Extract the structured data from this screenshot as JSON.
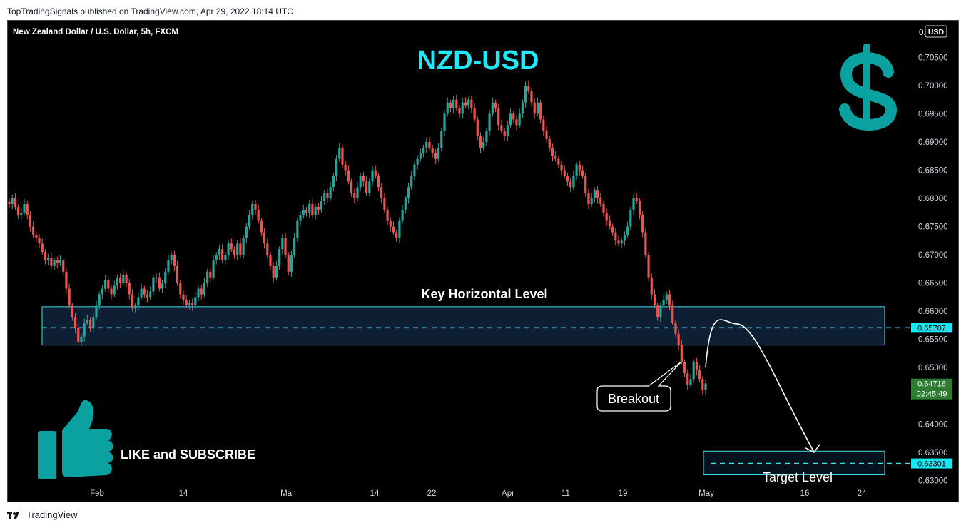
{
  "header": {
    "published_text": "TopTradingSignals published on TradingView.com, Apr 29, 2022 18:14 UTC"
  },
  "footer": {
    "brand": "TradingView",
    "logo_icon": "tradingview-logo-icon"
  },
  "colors": {
    "background": "#000000",
    "bull_candle": "#26a69a",
    "bear_candle": "#ef5350",
    "accent_cyan": "#00e5ff",
    "teal_icon": "#0aa1a0",
    "last_price_bg": "#2e7d32"
  },
  "chart_data": {
    "type": "candlestick",
    "symbol_title": "New Zealand Dollar / U.S. Dollar, 5h, FXCM",
    "overlay_title": "NZD-USD",
    "currency": "USD",
    "ylim": [
      0.626,
      0.7115
    ],
    "y_ticks": [
      0.705,
      0.7,
      0.695,
      0.69,
      0.685,
      0.68,
      0.675,
      0.67,
      0.665,
      0.66,
      0.655,
      0.65,
      0.64,
      0.635,
      0.63
    ],
    "y_tick_labels": [
      "0.70500",
      "0.70000",
      "0.69500",
      "0.69000",
      "0.68500",
      "0.68000",
      "0.67500",
      "0.67000",
      "0.66500",
      "0.66000",
      "0.65500",
      "0.65000",
      "0.64000",
      "0.63500",
      "0.63000"
    ],
    "y_top_label": "0.",
    "x_ticks": [
      "Feb",
      "14",
      "Mar",
      "14",
      "22",
      "Apr",
      "11",
      "19",
      "May",
      "16",
      "24"
    ],
    "path_closes": [
      0.679,
      0.68,
      0.6785,
      0.677,
      0.6775,
      0.679,
      0.677,
      0.675,
      0.6735,
      0.673,
      0.672,
      0.6705,
      0.669,
      0.6695,
      0.668,
      0.669,
      0.6685,
      0.669,
      0.667,
      0.664,
      0.661,
      0.659,
      0.657,
      0.6545,
      0.6555,
      0.658,
      0.6585,
      0.657,
      0.659,
      0.661,
      0.663,
      0.664,
      0.6655,
      0.664,
      0.663,
      0.6645,
      0.666,
      0.665,
      0.6665,
      0.665,
      0.663,
      0.6605,
      0.661,
      0.6625,
      0.664,
      0.663,
      0.6625,
      0.6635,
      0.666,
      0.666,
      0.664,
      0.665,
      0.667,
      0.669,
      0.67,
      0.668,
      0.665,
      0.663,
      0.662,
      0.661,
      0.6615,
      0.661,
      0.6625,
      0.664,
      0.663,
      0.665,
      0.667,
      0.666,
      0.669,
      0.67,
      0.671,
      0.669,
      0.67,
      0.672,
      0.671,
      0.67,
      0.672,
      0.67,
      0.673,
      0.675,
      0.677,
      0.679,
      0.678,
      0.676,
      0.674,
      0.672,
      0.67,
      0.668,
      0.666,
      0.668,
      0.671,
      0.673,
      0.67,
      0.667,
      0.67,
      0.673,
      0.676,
      0.677,
      0.678,
      0.6775,
      0.679,
      0.677,
      0.6785,
      0.678,
      0.6795,
      0.681,
      0.68,
      0.682,
      0.684,
      0.687,
      0.689,
      0.686,
      0.685,
      0.683,
      0.681,
      0.68,
      0.682,
      0.684,
      0.683,
      0.681,
      0.683,
      0.685,
      0.684,
      0.682,
      0.68,
      0.678,
      0.676,
      0.675,
      0.674,
      0.673,
      0.676,
      0.678,
      0.68,
      0.682,
      0.684,
      0.686,
      0.687,
      0.688,
      0.689,
      0.69,
      0.689,
      0.688,
      0.687,
      0.689,
      0.692,
      0.695,
      0.697,
      0.696,
      0.6975,
      0.696,
      0.695,
      0.697,
      0.6965,
      0.6975,
      0.696,
      0.694,
      0.691,
      0.689,
      0.69,
      0.692,
      0.695,
      0.697,
      0.696,
      0.693,
      0.692,
      0.691,
      0.693,
      0.695,
      0.694,
      0.693,
      0.695,
      0.697,
      0.7,
      0.699,
      0.697,
      0.695,
      0.697,
      0.694,
      0.692,
      0.6905,
      0.689,
      0.6875,
      0.687,
      0.686,
      0.685,
      0.684,
      0.683,
      0.682,
      0.684,
      0.686,
      0.685,
      0.684,
      0.681,
      0.679,
      0.68,
      0.6815,
      0.68,
      0.679,
      0.6775,
      0.676,
      0.675,
      0.674,
      0.6725,
      0.672,
      0.6725,
      0.6735,
      0.675,
      0.678,
      0.68,
      0.6795,
      0.677,
      0.674,
      0.67,
      0.666,
      0.663,
      0.661,
      0.659,
      0.661,
      0.662,
      0.663,
      0.661,
      0.658,
      0.656,
      0.654,
      0.651,
      0.649,
      0.647,
      0.648,
      0.651,
      0.6495,
      0.648,
      0.646,
      0.6472
    ],
    "key_level": {
      "label": "Key Horizontal Level",
      "value": 0.65707,
      "value_label": "0.65707",
      "zone": [
        0.654,
        0.6608
      ]
    },
    "target_level": {
      "label": "Target Level",
      "value": 0.63301,
      "value_label": "0.63301",
      "zone": [
        0.631,
        0.6352
      ]
    },
    "last_price": {
      "value": 0.64716,
      "value_label": "0.64716",
      "countdown": "02:45:49"
    },
    "projected_path": [
      0.65,
      0.657,
      0.652,
      0.642,
      0.635
    ],
    "annotations": {
      "breakout": "Breakout"
    }
  },
  "promo": {
    "cta_text": "LIKE and SUBSCRIBE",
    "thumb_icon": "thumbs-up-icon",
    "dollar_icon": "dollar-sign-icon"
  }
}
